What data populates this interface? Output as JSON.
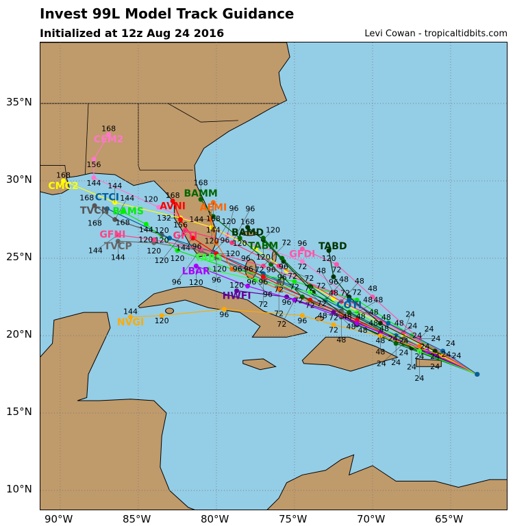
{
  "title": "Invest 99L Model Track Guidance",
  "subtitle": "Initialized at 12z Aug 24 2016",
  "credit": "Levi Cowan - tropicaltidbits.com",
  "colors": {
    "ocean": "#94cde6",
    "land": "#bf9a6b"
  },
  "lon_ticks": [
    {
      "v": -90,
      "label": "90°W"
    },
    {
      "v": -85,
      "label": "85°W"
    },
    {
      "v": -80,
      "label": "80°W"
    },
    {
      "v": -75,
      "label": "75°W"
    },
    {
      "v": -70,
      "label": "70°W"
    },
    {
      "v": -65,
      "label": "65°W"
    }
  ],
  "lat_ticks": [
    {
      "v": 35,
      "label": "35°N"
    },
    {
      "v": 30,
      "label": "30°N"
    },
    {
      "v": 25,
      "label": "25°N"
    },
    {
      "v": 20,
      "label": "20°N"
    },
    {
      "v": 15,
      "label": "15°N"
    },
    {
      "v": 10,
      "label": "10°N"
    }
  ],
  "tracks": [
    {
      "model": "CEM2",
      "color": "#ff77cc",
      "points": [
        [
          -63.3,
          17.5,
          0
        ],
        [
          -69.25,
          20.8,
          48
        ],
        [
          -74.5,
          24.8,
          72
        ],
        [
          -79.3,
          26.5,
          96
        ],
        [
          -83.7,
          28.3,
          120
        ],
        [
          -87.85,
          30.2,
          144
        ],
        [
          -87.85,
          31.4,
          156
        ],
        [
          -86.9,
          33.0,
          168
        ]
      ]
    },
    {
      "model": "CMC2",
      "color": "#ffff00",
      "points": [
        [
          -63.3,
          17.5,
          0
        ],
        [
          -68,
          20.0,
          24
        ],
        [
          -72.5,
          22.4,
          48
        ],
        [
          -75.5,
          24.2,
          72
        ],
        [
          -77.5,
          25.6,
          96
        ],
        [
          -80.3,
          27.0,
          120
        ],
        [
          -82.3,
          27.6,
          132
        ],
        [
          -86.5,
          28.6,
          144
        ],
        [
          -89.8,
          30.0,
          168
        ]
      ]
    },
    {
      "model": "TVCN",
      "color": "#555555",
      "points": [
        [
          -63.3,
          17.5,
          0
        ],
        [
          -68,
          19.8,
          24
        ],
        [
          -72,
          21.6,
          48
        ],
        [
          -76,
          23.5,
          72
        ],
        [
          -80,
          25.0,
          96
        ],
        [
          -83.5,
          26.5,
          120
        ],
        [
          -86.5,
          27.5,
          144
        ],
        [
          -87.8,
          28.4,
          168
        ]
      ]
    },
    {
      "model": "TVCP",
      "color": "#666666",
      "points": [
        [
          -63.3,
          17.5,
          0
        ],
        [
          -68,
          19.6,
          24
        ],
        [
          -72,
          21.5,
          48
        ],
        [
          -77,
          23.6,
          72
        ],
        [
          -81,
          25.5,
          96
        ],
        [
          -84,
          26.0,
          120
        ],
        [
          -86.3,
          26.1,
          144
        ]
      ]
    },
    {
      "model": "CTCI",
      "color": "#00609c",
      "points": [
        [
          -63.3,
          17.5,
          0
        ],
        [
          -68.5,
          20.0,
          24
        ],
        [
          -73,
          22.3,
          48
        ],
        [
          -77,
          24.0,
          72
        ],
        [
          -80.2,
          25.4,
          96
        ],
        [
          -83,
          26.3,
          120
        ],
        [
          -87,
          28.2,
          168
        ]
      ]
    },
    {
      "model": "BAMS",
      "color": "#00ee00",
      "points": [
        [
          -63.3,
          17.5,
          0
        ],
        [
          -67.5,
          20.0,
          24
        ],
        [
          -71,
          22.3,
          48
        ],
        [
          -75,
          23.5,
          72
        ],
        [
          -79,
          24.3,
          96
        ],
        [
          -82.5,
          25.5,
          120
        ],
        [
          -84.5,
          27.2,
          144
        ],
        [
          -86,
          28.0,
          168
        ]
      ]
    },
    {
      "model": "GFNI",
      "color": "#ff4488",
      "points": [
        [
          -63.3,
          17.5,
          0
        ],
        [
          -68,
          20.2,
          24
        ],
        [
          -72.5,
          22.8,
          48
        ],
        [
          -77,
          24.5,
          72
        ],
        [
          -81,
          25.6,
          96
        ],
        [
          -84,
          26.2,
          120
        ],
        [
          -86.3,
          26.5,
          144
        ]
      ]
    },
    {
      "model": "AVNI",
      "color": "#ff0000",
      "points": [
        [
          -63.3,
          17.5,
          0
        ],
        [
          -67,
          19.0,
          24
        ],
        [
          -71,
          21.0,
          48
        ],
        [
          -74,
          22.3,
          72
        ],
        [
          -77,
          23.8,
          96
        ],
        [
          -80,
          25.3,
          120
        ],
        [
          -81.5,
          26.3,
          144
        ],
        [
          -82.3,
          27.5,
          156
        ],
        [
          -82.8,
          28.7,
          168
        ]
      ]
    },
    {
      "model": "BAMM",
      "color": "#006600",
      "points": [
        [
          -63.3,
          17.5,
          0
        ],
        [
          -68.5,
          19.5,
          24
        ],
        [
          -72,
          21.2,
          48
        ],
        [
          -74.5,
          22.5,
          72
        ],
        [
          -76.5,
          24.6,
          96
        ],
        [
          -78.5,
          26.3,
          120
        ],
        [
          -80.2,
          27.7,
          144
        ],
        [
          -81,
          28.8,
          168
        ]
      ]
    },
    {
      "model": "AEMI",
      "color": "#ff6600",
      "points": [
        [
          -63.3,
          17.5,
          0
        ],
        [
          -67,
          19.3,
          24
        ],
        [
          -72,
          21.3,
          48
        ],
        [
          -76,
          23.0,
          72
        ],
        [
          -79,
          24.3,
          96
        ],
        [
          -80.0,
          26.0,
          120
        ],
        [
          -80.4,
          27.5,
          144
        ],
        [
          -80.2,
          28.6,
          168
        ]
      ]
    },
    {
      "model": "GFTI",
      "color": "#ff3377",
      "points": [
        [
          -63.3,
          17.5,
          0
        ],
        [
          -67,
          19.8,
          24
        ],
        [
          -72,
          22.2,
          48
        ],
        [
          -76,
          24.5,
          72
        ],
        [
          -79,
          26.0,
          96
        ],
        [
          -82,
          26.8,
          120
        ]
      ]
    },
    {
      "model": "BAMD",
      "color": "#003300",
      "points": [
        [
          -63.3,
          17.5,
          0
        ],
        [
          -67.5,
          19.2,
          24
        ],
        [
          -71,
          20.7,
          48
        ],
        [
          -73.8,
          22.8,
          72
        ],
        [
          -75.7,
          24.8,
          96
        ],
        [
          -77,
          26.2,
          120
        ],
        [
          -78,
          27.0,
          168
        ]
      ]
    },
    {
      "model": "TABM",
      "color": "#006600",
      "points": [
        [
          -63.3,
          17.5,
          0
        ],
        [
          -68,
          19.5,
          24
        ],
        [
          -71.5,
          21.5,
          48
        ],
        [
          -74,
          23.2,
          72
        ],
        [
          -75.8,
          25.0,
          96
        ],
        [
          -77.0,
          26.3,
          120
        ]
      ]
    },
    {
      "model": "GFDI",
      "color": "#ff55aa",
      "points": [
        [
          -63.3,
          17.5,
          0
        ],
        [
          -67,
          19.8,
          24
        ],
        [
          -70,
          22.5,
          48
        ],
        [
          -72.3,
          24.6,
          72
        ],
        [
          -74.5,
          25.6,
          96
        ]
      ]
    },
    {
      "model": "TABD",
      "color": "#003300",
      "points": [
        [
          -63.3,
          17.5,
          0
        ],
        [
          -66,
          19.0,
          24
        ],
        [
          -69.5,
          20.8,
          48
        ],
        [
          -71.5,
          22.5,
          72
        ],
        [
          -72.5,
          23.8,
          96
        ],
        [
          -72.8,
          25.5,
          120
        ]
      ]
    },
    {
      "model": "HWFI",
      "color": "#660099",
      "points": [
        [
          -63.3,
          17.5,
          0
        ],
        [
          -66,
          18.7,
          24
        ],
        [
          -69.5,
          20.2,
          48
        ],
        [
          -72.5,
          21.5,
          72
        ],
        [
          -75.5,
          22.5,
          96
        ],
        [
          -78.7,
          22.9,
          120
        ]
      ]
    },
    {
      "model": "LBAR",
      "color": "#aa00ff",
      "points": [
        [
          -63.3,
          17.5,
          0
        ],
        [
          -66.5,
          19.0,
          24
        ],
        [
          -71,
          20.8,
          48
        ],
        [
          -75,
          22.3,
          72
        ],
        [
          -78,
          23.2,
          96
        ],
        [
          -81.3,
          24.5,
          120
        ]
      ]
    },
    {
      "model": "TABS",
      "color": "#33ff33",
      "points": [
        [
          -63.3,
          17.5,
          0
        ],
        [
          -67,
          19.0,
          24
        ],
        [
          -71,
          21.5,
          48
        ],
        [
          -74,
          22.8,
          72
        ],
        [
          -77.5,
          23.6,
          96
        ],
        [
          -80.5,
          24.3,
          120
        ]
      ]
    },
    {
      "model": "NVGI",
      "color": "#ffaa00",
      "points": [
        [
          -63.3,
          17.5,
          0
        ],
        [
          -65.5,
          18.7,
          24
        ],
        [
          -69.5,
          20.0,
          48
        ],
        [
          -72.5,
          20.7,
          72
        ],
        [
          -74.5,
          21.3,
          96
        ],
        [
          -79.5,
          21.7,
          96
        ],
        [
          -83.5,
          21.3,
          120
        ],
        [
          -85.5,
          21.2,
          144
        ]
      ]
    },
    {
      "model": "COTI",
      "color": "#00609c",
      "points": [
        [
          -63.3,
          17.5,
          0
        ],
        [
          -65.5,
          19.0,
          24
        ],
        [
          -69,
          20.8,
          48
        ],
        [
          -71.5,
          22.3,
          72
        ]
      ]
    }
  ]
}
